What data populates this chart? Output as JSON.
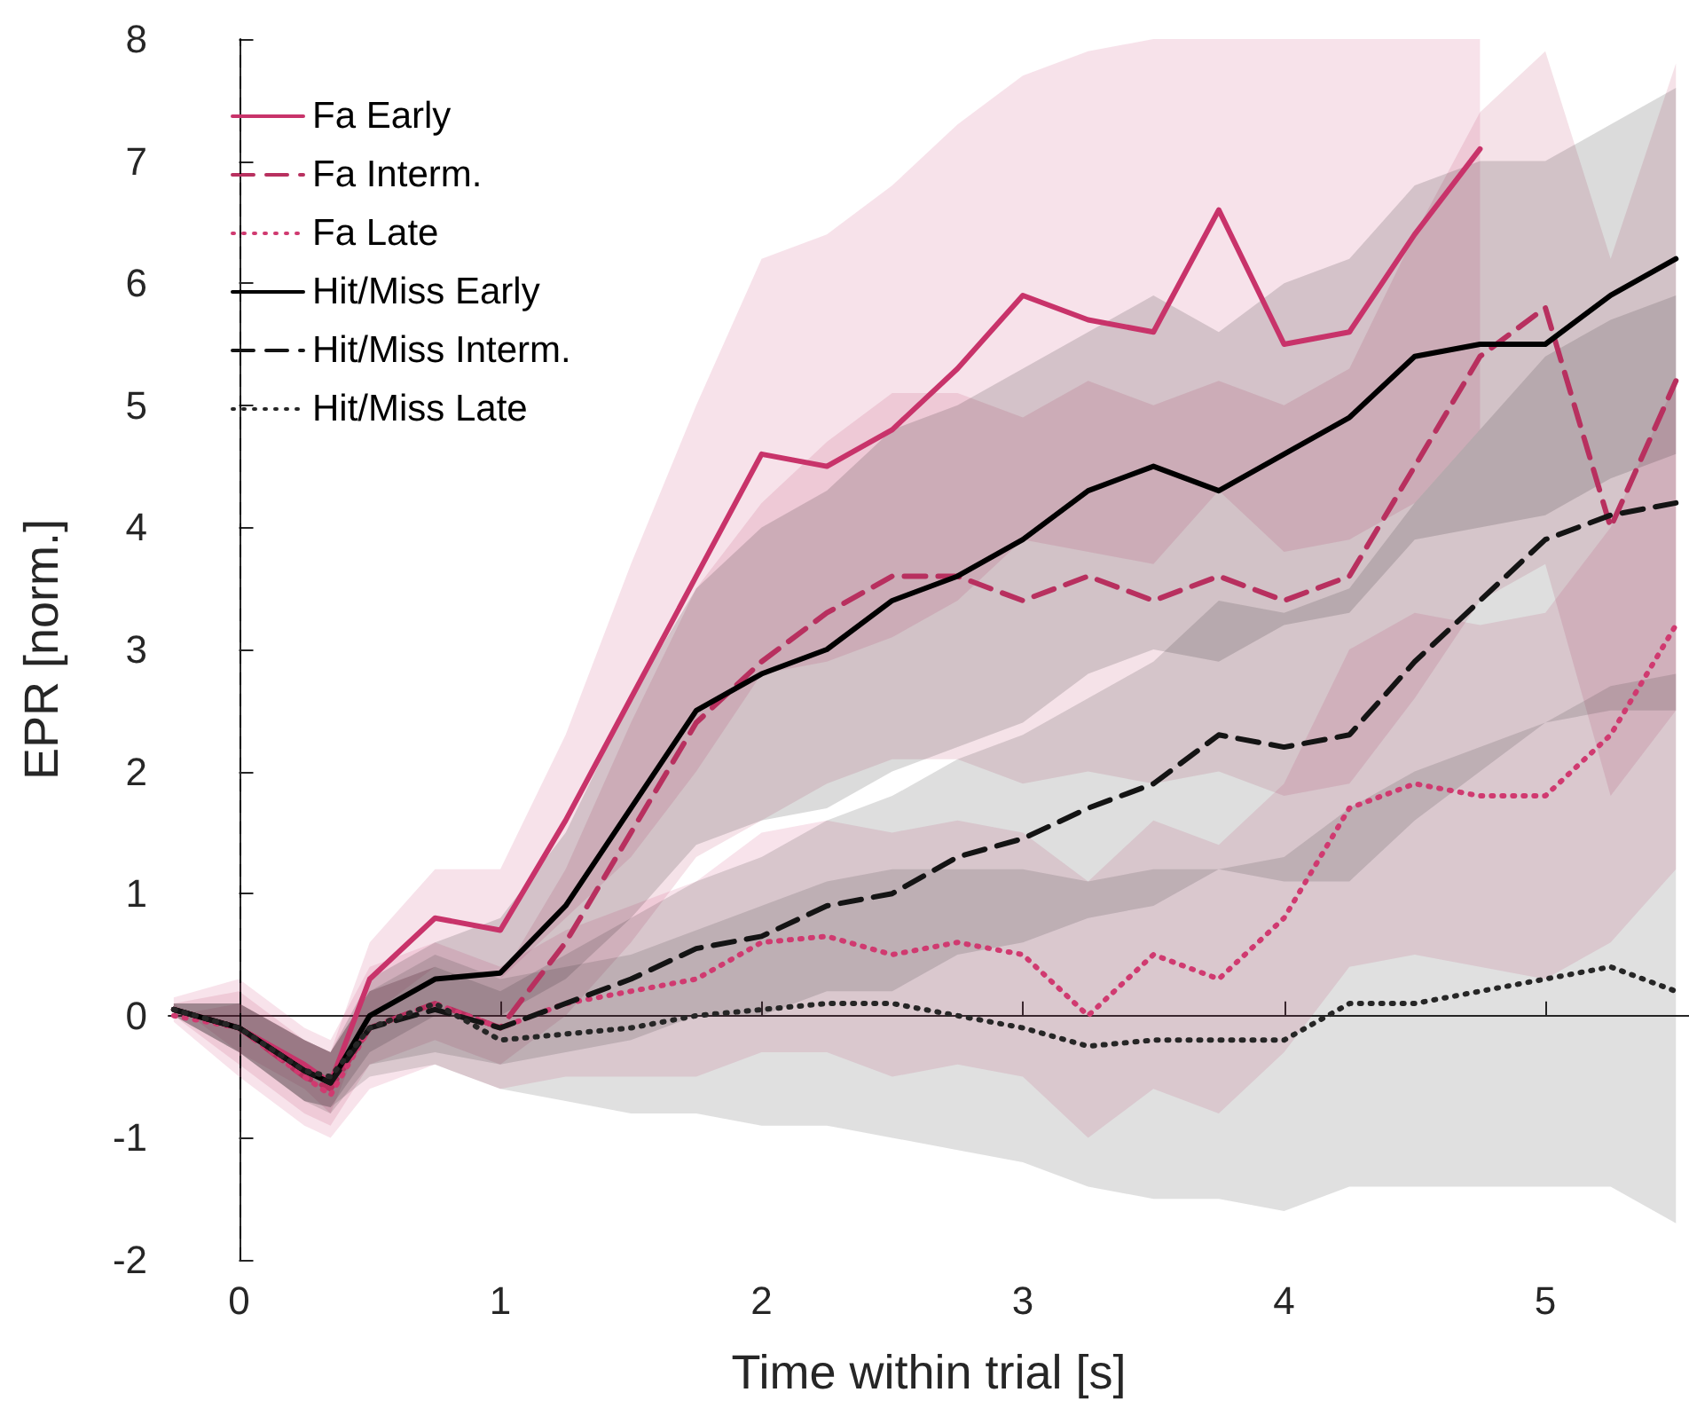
{
  "chart_data": {
    "type": "line",
    "xlabel": "Time within trial [s]",
    "ylabel": "EPR [norm.]",
    "x": [
      -0.25,
      0,
      0.25,
      0.35,
      0.5,
      0.75,
      1,
      1.25,
      1.5,
      1.75,
      2,
      2.25,
      2.5,
      2.75,
      3,
      3.25,
      3.5,
      3.75,
      4,
      4.25,
      4.5,
      4.75,
      5,
      5.25,
      5.5
    ],
    "xlim": [
      -0.27,
      5.55
    ],
    "ylim": [
      -2,
      8
    ],
    "xticks": [
      0,
      1,
      2,
      3,
      4,
      5
    ],
    "yticks": [
      -2,
      -1,
      0,
      1,
      2,
      3,
      4,
      5,
      6,
      7,
      8
    ],
    "legend": "top left",
    "grid": false,
    "ref_lines": [
      {
        "axis": "x",
        "value": 0,
        "color": "#000000",
        "line_style": "dashed"
      }
    ],
    "series": [
      {
        "name": "Fa Early",
        "color": "#c8336a",
        "line_style": "solid",
        "values": [
          0.05,
          -0.1,
          -0.4,
          -0.55,
          0.3,
          0.8,
          0.7,
          1.6,
          2.6,
          3.6,
          4.6,
          4.5,
          4.8,
          5.3,
          5.9,
          5.7,
          5.6,
          6.6,
          5.5,
          5.6,
          6.4,
          7.1,
          null,
          null,
          null
        ],
        "lower": [
          0.1,
          -0.3,
          -0.6,
          -0.8,
          0,
          0.4,
          0.3,
          0.8,
          1.3,
          2,
          2.8,
          2.9,
          3.1,
          3.4,
          3.9,
          3.8,
          3.7,
          4.3,
          3.8,
          3.9,
          4.2,
          4.8,
          null,
          null,
          null
        ],
        "upper": [
          0,
          0.1,
          -0.2,
          -0.3,
          0.6,
          1.2,
          1.2,
          2.3,
          3.7,
          5,
          6.2,
          6.4,
          6.8,
          7.3,
          7.7,
          7.9,
          8,
          8,
          8,
          8,
          8,
          8,
          null,
          null,
          null
        ]
      },
      {
        "name": "Fa Interm.",
        "color": "#b8305f",
        "line_style": "dashed",
        "values": [
          0.05,
          -0.1,
          -0.5,
          -0.6,
          -0.1,
          0.1,
          -0.1,
          0.6,
          1.5,
          2.4,
          2.9,
          3.3,
          3.6,
          3.6,
          3.4,
          3.6,
          3.4,
          3.6,
          3.4,
          3.6,
          4.5,
          5.4,
          5.8,
          4,
          5.2
        ],
        "lower": [
          0,
          -0.4,
          -0.8,
          -0.9,
          -0.4,
          -0.2,
          -0.4,
          0,
          0.6,
          1.3,
          1.6,
          1.9,
          2.1,
          2.1,
          1.9,
          2,
          1.9,
          2,
          1.8,
          1.9,
          2.6,
          3.4,
          3.7,
          1.8,
          2.5
        ],
        "upper": [
          0.1,
          0.2,
          -0.2,
          -0.3,
          0.2,
          0.4,
          0.3,
          1.2,
          2.4,
          3.5,
          4.2,
          4.7,
          5.1,
          5.1,
          4.9,
          5.2,
          5,
          5.2,
          5,
          5.3,
          6.4,
          7.4,
          7.9,
          6.2,
          7.8
        ]
      },
      {
        "name": "Fa Late",
        "color": "#d03a70",
        "line_style": "dotted",
        "values": [
          0,
          -0.1,
          -0.5,
          -0.65,
          -0.1,
          0.1,
          -0.1,
          0.1,
          0.2,
          0.3,
          0.6,
          0.65,
          0.5,
          0.6,
          0.5,
          0,
          0.5,
          0.3,
          0.8,
          1.7,
          1.9,
          1.8,
          1.8,
          2.3,
          3.2
        ],
        "lower": [
          -0.05,
          -0.5,
          -0.9,
          -1,
          -0.6,
          -0.4,
          -0.6,
          -0.5,
          -0.5,
          -0.5,
          -0.3,
          -0.3,
          -0.5,
          -0.4,
          -0.5,
          -1,
          -0.6,
          -0.8,
          -0.3,
          0.4,
          0.5,
          0.4,
          0.3,
          0.6,
          1.2
        ],
        "upper": [
          0.15,
          0.3,
          -0.1,
          -0.2,
          0.4,
          0.6,
          0.4,
          0.7,
          0.9,
          1.1,
          1.5,
          1.6,
          1.5,
          1.6,
          1.5,
          1.1,
          1.6,
          1.4,
          1.9,
          3,
          3.3,
          3.2,
          3.3,
          4,
          5.2
        ]
      },
      {
        "name": "Hit/Miss Early",
        "color": "#000000",
        "line_style": "solid",
        "values": [
          0.05,
          -0.1,
          -0.45,
          -0.55,
          0,
          0.3,
          0.35,
          0.9,
          1.7,
          2.5,
          2.8,
          3,
          3.4,
          3.6,
          3.9,
          4.3,
          4.5,
          4.3,
          4.6,
          4.9,
          5.4,
          5.5,
          5.5,
          5.9,
          6.2
        ],
        "lower": [
          0,
          -0.3,
          -0.7,
          -0.75,
          -0.3,
          0,
          0,
          0.3,
          0.8,
          1.4,
          1.6,
          1.7,
          2,
          2.2,
          2.4,
          2.8,
          3,
          2.9,
          3.2,
          3.3,
          3.9,
          4,
          4.1,
          4.4,
          4.6
        ],
        "upper": [
          0.1,
          0.1,
          -0.2,
          -0.3,
          0.3,
          0.6,
          0.8,
          1.5,
          2.6,
          3.5,
          4,
          4.3,
          4.8,
          5,
          5.3,
          5.6,
          5.9,
          5.6,
          6,
          6.2,
          6.8,
          7,
          7,
          7.3,
          7.6
        ]
      },
      {
        "name": "Hit/Miss Interm.",
        "color": "#141414",
        "line_style": "dashed",
        "values": [
          0.05,
          -0.1,
          -0.45,
          -0.55,
          -0.1,
          0.05,
          -0.1,
          0.1,
          0.3,
          0.55,
          0.65,
          0.9,
          1,
          1.3,
          1.45,
          1.7,
          1.9,
          2.3,
          2.2,
          2.3,
          2.9,
          3.4,
          3.9,
          4.1,
          4.2
        ],
        "lower": [
          0,
          -0.3,
          -0.7,
          -0.8,
          -0.4,
          -0.3,
          -0.4,
          -0.3,
          -0.2,
          0,
          0,
          0.2,
          0.2,
          0.5,
          0.6,
          0.8,
          0.9,
          1.2,
          1.1,
          1.1,
          1.6,
          2,
          2.4,
          2.5,
          2.5
        ],
        "upper": [
          0.1,
          0.1,
          -0.2,
          -0.3,
          0.2,
          0.4,
          0.2,
          0.5,
          0.8,
          1.1,
          1.3,
          1.6,
          1.8,
          2.1,
          2.3,
          2.6,
          2.9,
          3.4,
          3.3,
          3.5,
          4.2,
          4.8,
          5.4,
          5.7,
          5.9
        ]
      },
      {
        "name": "Hit/Miss Late",
        "color": "#262626",
        "line_style": "dotted",
        "values": [
          0.05,
          -0.1,
          -0.45,
          -0.5,
          -0.1,
          0.1,
          -0.2,
          -0.15,
          -0.1,
          0,
          0.05,
          0.1,
          0.1,
          0,
          -0.1,
          -0.25,
          -0.2,
          -0.2,
          -0.2,
          0.1,
          0.1,
          0.2,
          0.3,
          0.4,
          0.2
        ],
        "lower": [
          0,
          -0.3,
          -0.7,
          -0.75,
          -0.5,
          -0.4,
          -0.6,
          -0.7,
          -0.8,
          -0.8,
          -0.9,
          -0.9,
          -1,
          -1.1,
          -1.2,
          -1.4,
          -1.5,
          -1.5,
          -1.6,
          -1.4,
          -1.4,
          -1.4,
          -1.4,
          -1.4,
          -1.7
        ],
        "upper": [
          0.1,
          0.1,
          -0.2,
          -0.3,
          0.2,
          0.5,
          0.3,
          0.4,
          0.5,
          0.7,
          0.9,
          1.1,
          1.2,
          1.2,
          1.2,
          1.1,
          1.2,
          1.2,
          1.3,
          1.7,
          2,
          2.2,
          2.4,
          2.7,
          2.8
        ]
      }
    ]
  }
}
